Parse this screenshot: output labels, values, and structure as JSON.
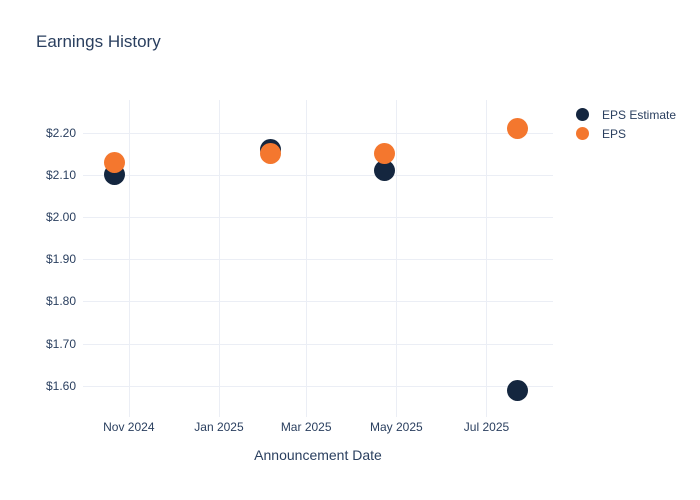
{
  "title": "Earnings History",
  "colors": {
    "text": "#2a3f5f",
    "grid": "#ebeef5",
    "background": "#ffffff",
    "eps_estimate": "#14263f",
    "eps": "#f4772e"
  },
  "chart_data": {
    "type": "scatter",
    "title": "Earnings History",
    "xlabel": "Announcement Date",
    "ylabel": "",
    "grid": true,
    "legend_position": "right",
    "marker_size": 21,
    "x_axis": {
      "min": "2024-10-01",
      "max": "2025-08-15",
      "ticks": [
        {
          "date": "2024-11-01",
          "label": "Nov 2024"
        },
        {
          "date": "2025-01-01",
          "label": "Jan 2025"
        },
        {
          "date": "2025-03-01",
          "label": "Mar 2025"
        },
        {
          "date": "2025-05-01",
          "label": "May 2025"
        },
        {
          "date": "2025-07-01",
          "label": "Jul 2025"
        }
      ]
    },
    "y_axis": {
      "min": 1.538,
      "max": 2.277,
      "ticks": [
        {
          "value": 2.2,
          "label": "$2.20"
        },
        {
          "value": 2.1,
          "label": "$2.10"
        },
        {
          "value": 2.0,
          "label": "$2.00"
        },
        {
          "value": 1.9,
          "label": "$1.90"
        },
        {
          "value": 1.8,
          "label": "$1.80"
        },
        {
          "value": 1.7,
          "label": "$1.70"
        },
        {
          "value": 1.6,
          "label": "$1.60"
        }
      ]
    },
    "series": [
      {
        "name": "EPS Estimate",
        "slug": "eps-estimate",
        "color": "#14263f",
        "points": [
          {
            "date": "2024-10-22",
            "value": 2.1
          },
          {
            "date": "2025-02-05",
            "value": 2.16
          },
          {
            "date": "2025-04-23",
            "value": 2.11
          },
          {
            "date": "2025-07-22",
            "value": 1.59
          }
        ]
      },
      {
        "name": "EPS",
        "slug": "eps",
        "color": "#f4772e",
        "points": [
          {
            "date": "2024-10-22",
            "value": 2.13
          },
          {
            "date": "2025-02-05",
            "value": 2.15
          },
          {
            "date": "2025-04-23",
            "value": 2.15
          },
          {
            "date": "2025-07-22",
            "value": 2.21
          }
        ]
      }
    ]
  }
}
